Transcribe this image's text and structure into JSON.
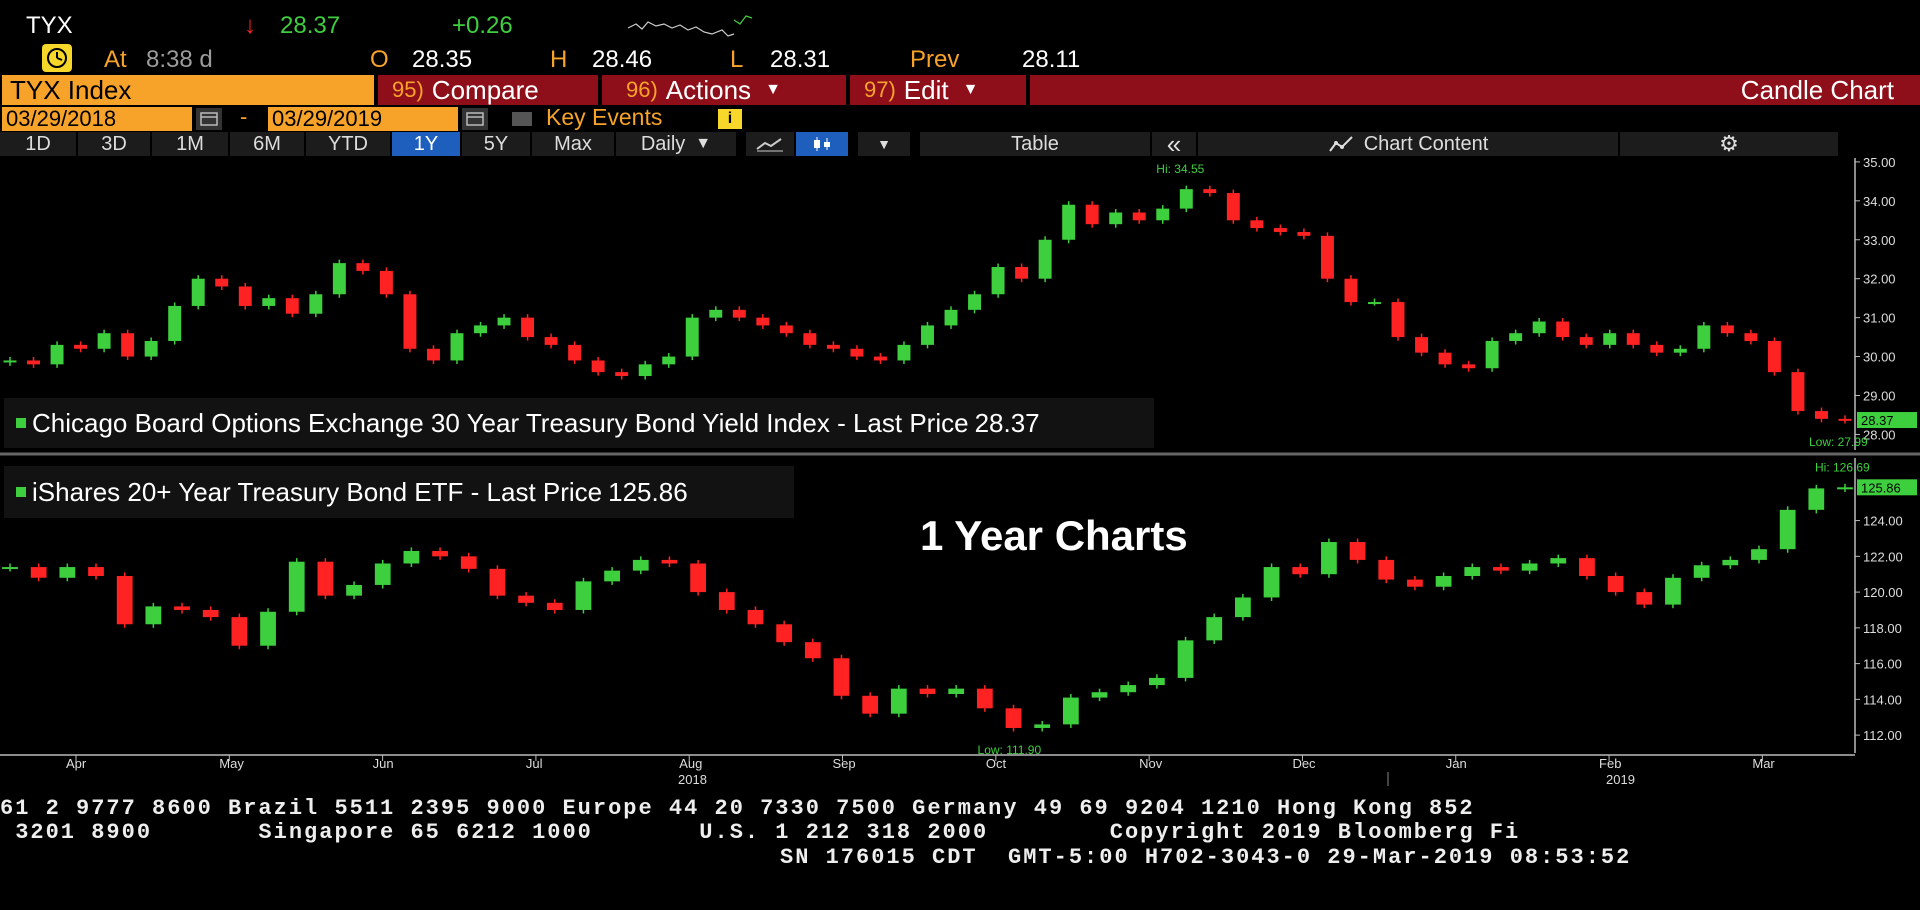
{
  "header": {
    "symbol": "TYX",
    "arrow": "↓",
    "last": "28.37",
    "change": "+0.26",
    "at_label": "At",
    "time": "8:38 d",
    "open_label": "O",
    "open": "28.35",
    "high_label": "H",
    "high": "28.46",
    "low_label": "L",
    "low": "28.31",
    "prev_label": "Prev",
    "prev": "28.11"
  },
  "menu": {
    "security": "TYX Index",
    "compare_num": "95)",
    "compare": "Compare",
    "actions_num": "96)",
    "actions": "Actions",
    "edit_num": "97)",
    "edit": "Edit",
    "chart_type": "Candle Chart"
  },
  "dates": {
    "start": "03/29/2018",
    "dash": "-",
    "end": "03/29/2019",
    "key_events": "Key Events"
  },
  "toolbar": {
    "periods": [
      "1D",
      "3D",
      "1M",
      "6M",
      "YTD",
      "1Y",
      "5Y",
      "Max"
    ],
    "active_period": "1Y",
    "frequency": "Daily",
    "table": "Table",
    "chart_content": "Chart Content"
  },
  "colors": {
    "up": "#3ecf3e",
    "down": "#ff2222",
    "accent_orange": "#f7a32a",
    "menu_red": "#8e0f1a",
    "active_tab": "#1e5fbe"
  },
  "overlay_title": "1 Year Charts",
  "chart_data": [
    {
      "type": "candlestick",
      "series_name": "Chicago Board Options Exchange 30 Year Treasury Bond Yield Index - Last Price",
      "last_price": "28.37",
      "hi_label": "Hi: 34.55",
      "low_label": "Low: 27.99",
      "y_ticks": [
        "35.00",
        "34.00",
        "33.00",
        "32.00",
        "31.00",
        "30.00",
        "29.00",
        "28.00"
      ],
      "ylim": [
        27.6,
        35.1
      ],
      "x_months": [
        "Apr",
        "May",
        "Jun",
        "Jul",
        "Aug",
        "Sep",
        "Oct",
        "Nov",
        "Dec",
        "Jan",
        "Feb",
        "Mar"
      ],
      "closes": [
        29.9,
        29.8,
        30.3,
        30.2,
        30.6,
        30.0,
        30.4,
        31.3,
        32.0,
        31.8,
        31.3,
        31.5,
        31.1,
        31.6,
        32.4,
        32.2,
        31.6,
        30.2,
        29.9,
        30.6,
        30.8,
        31.0,
        30.5,
        30.3,
        29.9,
        29.6,
        29.5,
        29.8,
        30.0,
        31.0,
        31.2,
        31.0,
        30.8,
        30.6,
        30.3,
        30.2,
        30.0,
        29.9,
        30.3,
        30.8,
        31.2,
        31.6,
        32.3,
        32.0,
        33.0,
        33.9,
        33.4,
        33.7,
        33.5,
        33.8,
        34.3,
        34.2,
        33.5,
        33.3,
        33.2,
        33.1,
        32.0,
        31.4,
        31.4,
        30.5,
        30.1,
        29.8,
        29.7,
        30.4,
        30.6,
        30.9,
        30.5,
        30.3,
        30.6,
        30.3,
        30.1,
        30.2,
        30.8,
        30.6,
        30.4,
        29.6,
        28.6,
        28.4,
        28.37
      ],
      "x_year_labels": [
        "2018",
        "2019"
      ]
    },
    {
      "type": "candlestick",
      "series_name": "iShares 20+ Year Treasury Bond ETF - Last Price",
      "last_price": "125.86",
      "hi_label": "Hi: 126.69",
      "low_label": "Low: 111.90",
      "y_ticks": [
        "124.00",
        "122.00",
        "120.00",
        "118.00",
        "116.00",
        "114.00",
        "112.00"
      ],
      "ylim": [
        111.0,
        127.5
      ],
      "x_months": [
        "Apr",
        "May",
        "Jun",
        "Jul",
        "Aug",
        "Sep",
        "Oct",
        "Nov",
        "Dec",
        "Jan",
        "Feb",
        "Mar"
      ],
      "closes": [
        121.4,
        120.8,
        121.4,
        120.9,
        118.2,
        119.2,
        119.0,
        118.6,
        117.0,
        118.9,
        121.7,
        119.8,
        120.4,
        121.6,
        122.3,
        122.0,
        121.3,
        119.8,
        119.4,
        119.0,
        120.6,
        121.2,
        121.8,
        121.6,
        120.0,
        119.0,
        118.2,
        117.2,
        116.3,
        114.2,
        113.2,
        114.6,
        114.3,
        114.6,
        113.5,
        112.4,
        112.6,
        114.1,
        114.4,
        114.8,
        115.2,
        117.3,
        118.6,
        119.7,
        121.4,
        121.0,
        122.8,
        121.8,
        120.7,
        120.3,
        120.9,
        121.4,
        121.2,
        121.6,
        121.9,
        120.9,
        120.0,
        119.3,
        120.8,
        121.5,
        121.8,
        122.4,
        124.6,
        125.8,
        125.86
      ],
      "x_year_labels": [
        "2018",
        "2019"
      ]
    }
  ],
  "footer": {
    "line1": "61 2 9777 8600 Brazil 5511 2395 9000 Europe 44 20 7330 7500 Germany 49 69 9204 1210 Hong Kong 852",
    "line2": " 3201 8900       Singapore 65 6212 1000       U.S. 1 212 318 2000        Copyright 2019 Bloomberg Fi",
    "line3": "SN 176015 CDT  GMT-5:00 H702-3043-0 29-Mar-2019 08:53:52"
  }
}
